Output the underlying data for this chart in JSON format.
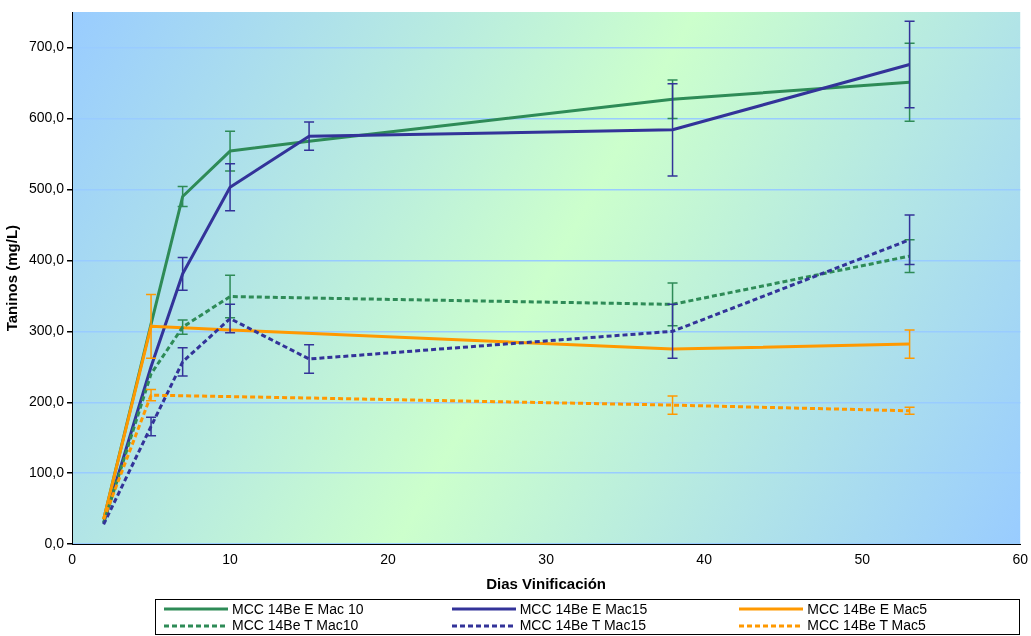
{
  "chart_data": {
    "type": "line",
    "xlabel": "Dias Vinificación",
    "ylabel": "Taninos (mg/L)",
    "x": [
      2,
      5,
      7,
      10,
      15,
      38,
      53
    ],
    "series": [
      {
        "name": "MCC 14Be E Mac 10",
        "color": "#2e8b57",
        "line_style": "solid",
        "values": [
          35,
          310,
          490,
          554,
          568,
          627,
          651
        ],
        "errors": [
          null,
          null,
          14,
          28,
          null,
          27,
          55
        ]
      },
      {
        "name": "MCC 14Be E Mac15",
        "color": "#333399",
        "line_style": "solid",
        "values": [
          30,
          250,
          381,
          503,
          575,
          584,
          676
        ],
        "errors": [
          null,
          null,
          23,
          33,
          20,
          65,
          61
        ]
      },
      {
        "name": "MCC 14Be E Mac5",
        "color": "#ff9900",
        "line_style": "solid",
        "values": [
          35,
          307,
          null,
          302,
          null,
          275,
          282
        ],
        "errors": [
          null,
          45,
          null,
          null,
          null,
          null,
          20
        ]
      },
      {
        "name": "MCC 14Be T Mac10",
        "color": "#2e8b57",
        "line_style": "dashed",
        "values": [
          30,
          240,
          306,
          349,
          347,
          338,
          406
        ],
        "errors": [
          null,
          null,
          10,
          30,
          null,
          30,
          23
        ]
      },
      {
        "name": "MCC 14Be T Mac15",
        "color": "#333399",
        "line_style": "dashed",
        "values": [
          28,
          166,
          257,
          318,
          261,
          300,
          429
        ],
        "errors": [
          null,
          13,
          20,
          20,
          20,
          38,
          35
        ]
      },
      {
        "name": "MCC 14Be T Mac5",
        "color": "#ff9900",
        "line_style": "dashed",
        "values": [
          35,
          210,
          null,
          208,
          206,
          196,
          188
        ],
        "errors": [
          null,
          8,
          null,
          null,
          null,
          13,
          5
        ]
      }
    ],
    "xlim": [
      0,
      60
    ],
    "xticks": [
      0,
      10,
      20,
      30,
      40,
      50,
      60
    ],
    "ylim": [
      0,
      750
    ],
    "yticks": [
      {
        "value": 0,
        "label": "0,0"
      },
      {
        "value": 100,
        "label": "100,0"
      },
      {
        "value": 200,
        "label": "200,0"
      },
      {
        "value": 300,
        "label": "300,0"
      },
      {
        "value": 400,
        "label": "400,0"
      },
      {
        "value": 500,
        "label": "500,0"
      },
      {
        "value": 600,
        "label": "600,0"
      },
      {
        "value": 700,
        "label": "700,0"
      }
    ],
    "grid": "y",
    "legend": "bottom",
    "marker": "none"
  }
}
